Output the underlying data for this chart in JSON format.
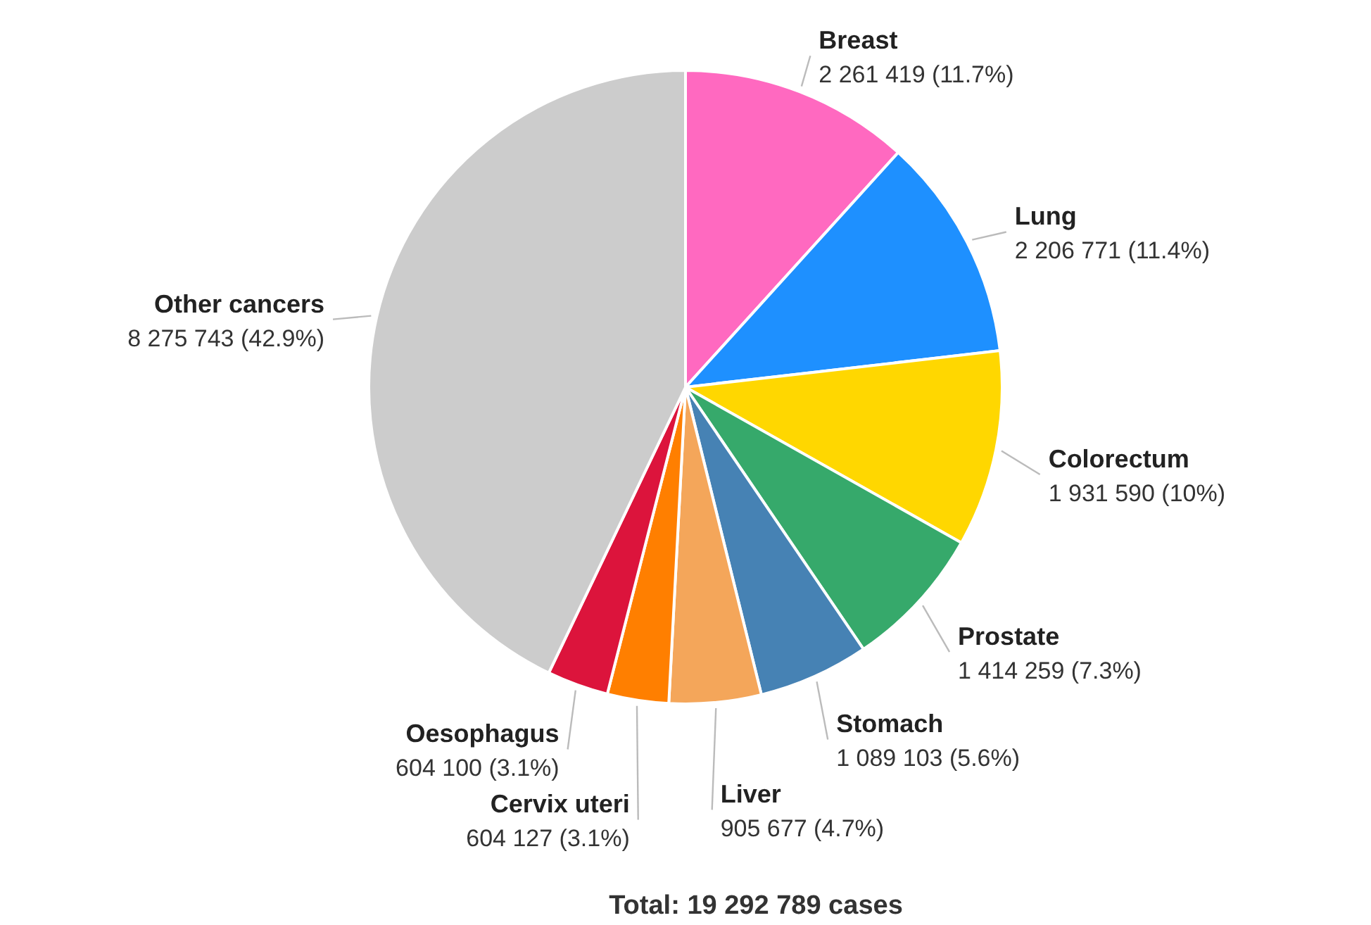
{
  "chart_data": {
    "type": "pie",
    "categories": [
      "Breast",
      "Lung",
      "Colorectum",
      "Prostate",
      "Stomach",
      "Liver",
      "Cervix uteri",
      "Oesophagus",
      "Other cancers"
    ],
    "values": [
      2261419,
      2206771,
      1931590,
      1414259,
      1089103,
      905677,
      604127,
      604100,
      8275743
    ],
    "colors": [
      "#ff69c0",
      "#1e90ff",
      "#ffd700",
      "#36a96b",
      "#4682b4",
      "#f4a65a",
      "#ff7f00",
      "#dc143c",
      "#cccccc"
    ],
    "value_labels": [
      "2 261 419 (11.7%)",
      "2 206 771 (11.4%)",
      "1 931 590 (10%)",
      "1 414 259 (7.3%)",
      "1 089 103 (5.6%)",
      "905 677 (4.7%)",
      "604 127 (3.1%)",
      "604 100 (3.1%)",
      "8 275 743 (42.9%)"
    ],
    "annotations": [
      "Total: 19 292 789 cases"
    ]
  }
}
